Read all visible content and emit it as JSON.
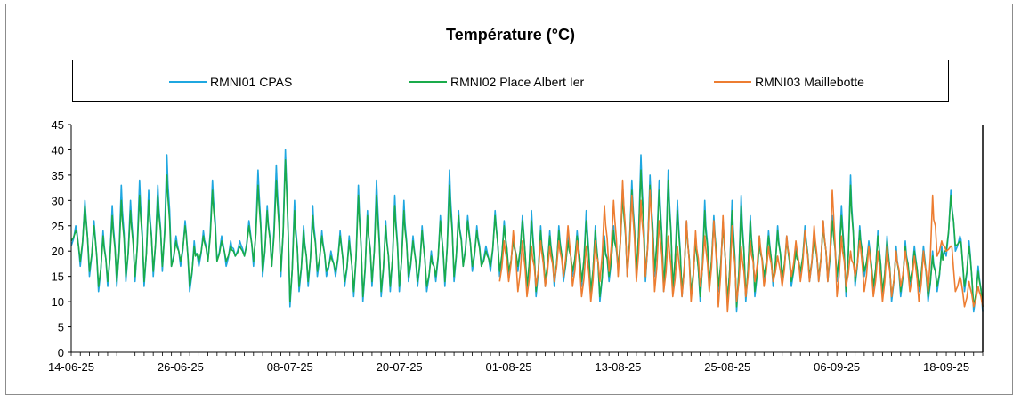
{
  "chart_data": {
    "type": "line",
    "title": "Température (°C)",
    "xlabel": "",
    "ylabel": "",
    "ylim": [
      0,
      45
    ],
    "yticks": [
      0,
      5,
      10,
      15,
      20,
      25,
      30,
      35,
      40,
      45
    ],
    "xticks": [
      "14-06-25",
      "26-06-25",
      "08-07-25",
      "20-07-25",
      "01-08-25",
      "13-08-25",
      "25-08-25",
      "06-09-25",
      "18-09-25"
    ],
    "x_range": [
      "2025-06-14",
      "2025-09-22"
    ],
    "grid": false,
    "legend": "top",
    "series": [
      {
        "name": "RMNI01 CPAS",
        "color": "#1fa7e0",
        "start": "2025-06-14",
        "end": "2025-09-22",
        "daily_min": [
          21,
          17,
          15,
          12,
          13,
          13,
          14,
          14,
          13,
          15,
          16,
          17,
          17,
          12,
          17,
          18,
          18,
          17,
          19,
          19,
          17,
          15,
          17,
          15,
          9,
          12,
          13,
          15,
          15,
          15,
          13,
          11,
          10,
          13,
          11,
          12,
          12,
          14,
          13,
          12,
          14,
          13,
          14,
          17,
          16,
          17,
          16,
          15,
          15,
          16,
          12,
          11,
          13,
          13,
          14,
          15,
          13,
          11,
          10,
          14,
          16,
          15,
          15,
          14,
          15,
          12,
          12,
          11,
          11,
          10,
          13,
          12,
          9,
          8,
          10,
          11,
          14,
          13,
          14,
          13,
          15,
          14,
          14,
          14,
          14,
          11,
          13,
          15,
          12,
          11,
          10,
          11,
          13,
          12,
          10,
          12,
          19,
          20,
          12,
          8
        ],
        "daily_max": [
          25,
          30,
          26,
          24,
          29,
          33,
          30,
          34,
          32,
          33,
          39,
          23,
          26,
          22,
          24,
          34,
          23,
          22,
          22,
          26,
          36,
          29,
          37,
          40,
          30,
          25,
          29,
          24,
          20,
          24,
          23,
          33,
          28,
          34,
          26,
          31,
          30,
          23,
          25,
          20,
          27,
          36,
          28,
          27,
          25,
          21,
          28,
          26,
          23,
          27,
          28,
          25,
          24,
          25,
          23,
          24,
          28,
          25,
          23,
          25,
          33,
          34,
          39,
          35,
          34,
          36,
          30,
          26,
          23,
          30,
          27,
          26,
          30,
          31,
          27,
          23,
          24,
          25,
          23,
          21,
          25,
          24,
          26,
          27,
          29,
          35,
          25,
          22,
          24,
          23,
          21,
          22,
          21,
          21,
          20,
          21,
          32,
          23,
          22,
          17
        ]
      },
      {
        "name": "RMNI02 Place Albert Ier",
        "color": "#1aab4b",
        "start": "2025-06-14",
        "end": "2025-09-22",
        "daily_min": [
          22,
          18,
          16,
          13,
          14,
          14,
          15,
          15,
          14,
          16,
          17,
          17,
          18,
          13,
          18,
          18,
          18,
          18,
          19,
          19,
          18,
          16,
          17,
          16,
          10,
          13,
          14,
          16,
          16,
          16,
          14,
          12,
          11,
          14,
          12,
          13,
          13,
          15,
          14,
          13,
          15,
          14,
          15,
          17,
          17,
          17,
          17,
          16,
          16,
          17,
          13,
          12,
          14,
          14,
          15,
          16,
          14,
          12,
          11,
          15,
          17,
          16,
          16,
          15,
          16,
          13,
          13,
          12,
          12,
          11,
          14,
          13,
          10,
          9,
          11,
          12,
          15,
          14,
          15,
          14,
          16,
          15,
          15,
          15,
          15,
          12,
          14,
          16,
          13,
          12,
          11,
          12,
          14,
          13,
          11,
          13,
          20,
          21,
          13,
          9
        ],
        "daily_max": [
          24,
          29,
          25,
          23,
          27,
          30,
          28,
          31,
          30,
          31,
          35,
          22,
          25,
          21,
          23,
          32,
          22,
          21,
          21,
          25,
          33,
          28,
          34,
          38,
          28,
          24,
          27,
          23,
          19,
          23,
          22,
          31,
          27,
          31,
          25,
          29,
          28,
          22,
          24,
          19,
          26,
          33,
          27,
          26,
          24,
          20,
          27,
          25,
          22,
          26,
          26,
          24,
          23,
          24,
          22,
          23,
          26,
          24,
          22,
          24,
          31,
          32,
          36,
          33,
          32,
          34,
          28,
          25,
          22,
          28,
          26,
          25,
          28,
          29,
          26,
          22,
          23,
          24,
          22,
          20,
          24,
          23,
          25,
          26,
          27,
          33,
          24,
          21,
          23,
          22,
          20,
          21,
          20,
          20,
          19,
          20,
          31,
          22,
          21,
          16
        ]
      },
      {
        "name": "RMNI03 Maillebotte",
        "color": "#ed7d31",
        "start": "2025-07-31",
        "end": "2025-09-22",
        "daily_min": [
          14,
          14,
          12,
          11,
          13,
          13,
          14,
          15,
          13,
          11,
          10,
          14,
          16,
          15,
          15,
          14,
          15,
          12,
          12,
          11,
          11,
          10,
          13,
          12,
          9,
          8,
          10,
          11,
          14,
          13,
          14,
          13,
          15,
          14,
          14,
          14,
          14,
          11,
          13,
          15,
          12,
          11,
          10,
          11,
          13,
          12,
          10,
          12,
          19,
          20,
          12,
          9,
          9,
          9
        ],
        "daily_max": [
          22,
          24,
          22,
          21,
          22,
          21,
          22,
          25,
          22,
          21,
          22,
          29,
          30,
          34,
          31,
          30,
          32,
          26,
          23,
          21,
          26,
          24,
          23,
          26,
          27,
          25,
          21,
          22,
          23,
          21,
          19,
          23,
          22,
          24,
          25,
          26,
          32,
          23,
          20,
          22,
          21,
          20,
          21,
          20,
          20,
          19,
          20,
          31,
          22,
          21,
          15,
          14,
          13,
          11
        ]
      }
    ]
  }
}
